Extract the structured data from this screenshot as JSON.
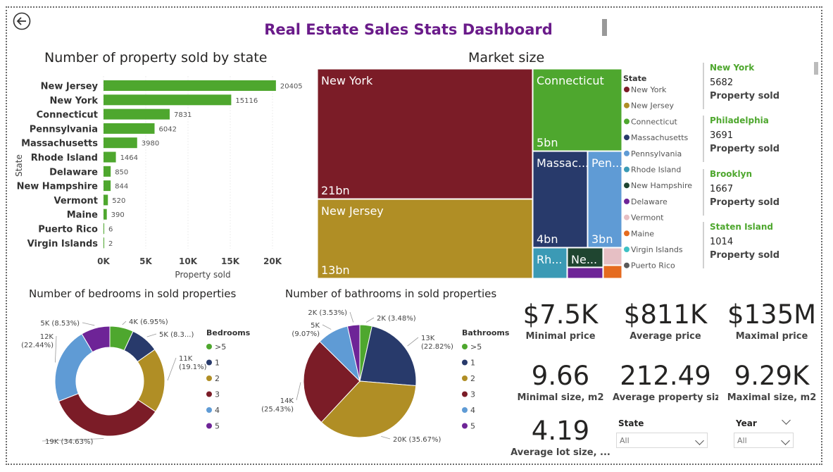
{
  "title": "Real Estate Sales Stats Dashboard",
  "colors": {
    "title": "#6a1b8a",
    "bar": "#4ea72e",
    "card_city": "#4ea72e",
    "palette": [
      "#7b1c27",
      "#b08e25",
      "#4ea72e",
      "#283a6b",
      "#5f9bd5",
      "#3b9ab5",
      "#1f4530",
      "#6e2497",
      "#e6bfc4",
      "#e56b1f",
      "#3ec1c5",
      "#5a5a5a"
    ]
  },
  "chart_data": [
    {
      "type": "bar",
      "orientation": "horizontal",
      "title": "Number of property sold by state",
      "xlabel": "Property sold",
      "ylabel": "State",
      "xlim": [
        0,
        20000
      ],
      "xticks": [
        "0K",
        "5K",
        "10K",
        "15K",
        "20K"
      ],
      "categories": [
        "New Jersey",
        "New York",
        "Connecticut",
        "Pennsylvania",
        "Massachusetts",
        "Rhode Island",
        "Delaware",
        "New Hampshire",
        "Vermont",
        "Maine",
        "Puerto Rico",
        "Virgin Islands"
      ],
      "values": [
        20405,
        15116,
        7831,
        6042,
        3980,
        1464,
        850,
        844,
        520,
        390,
        6,
        2
      ],
      "data_labels": [
        "20405",
        "15116",
        "7831",
        "6042",
        "3980",
        "1464",
        "850",
        "844",
        "520",
        "390",
        "6",
        "2"
      ]
    },
    {
      "type": "treemap",
      "title": "Market size",
      "legend_title": "State",
      "items": [
        {
          "name": "New York",
          "label": "New York",
          "value_label": "21bn",
          "value": 21
        },
        {
          "name": "New Jersey",
          "label": "New Jersey",
          "value_label": "13bn",
          "value": 13
        },
        {
          "name": "Connecticut",
          "label": "Connecticut",
          "value_label": "5bn",
          "value": 5
        },
        {
          "name": "Massachusetts",
          "label": "Massac...",
          "value_label": "4bn",
          "value": 4
        },
        {
          "name": "Pennsylvania",
          "label": "Pen...",
          "value_label": "3bn",
          "value": 3
        },
        {
          "name": "Rhode Island",
          "label": "Rh...",
          "value_label": "",
          "value": 1
        },
        {
          "name": "New Hampshire",
          "label": "Ne...",
          "value_label": "",
          "value": 1
        },
        {
          "name": "Delaware",
          "label": "",
          "value_label": "",
          "value": 0.4
        },
        {
          "name": "Vermont",
          "label": "",
          "value_label": "",
          "value": 0.4
        },
        {
          "name": "Maine",
          "label": "",
          "value_label": "",
          "value": 0.4
        },
        {
          "name": "Virgin Islands",
          "label": "",
          "value_label": "",
          "value": 0
        },
        {
          "name": "Puerto Rico",
          "label": "",
          "value_label": "",
          "value": 0
        }
      ]
    },
    {
      "type": "pie",
      "variant": "donut",
      "title": "Number of bedrooms in sold properties",
      "legend_title": "Bedrooms",
      "legend": [
        ">5",
        "1",
        "2",
        "3",
        "4",
        "5"
      ],
      "slices": [
        {
          "name": ">5",
          "value": 6.95,
          "label": "4K (6.95%)"
        },
        {
          "name": "1",
          "value": 8.3,
          "label": "5K (8.3...)"
        },
        {
          "name": "2",
          "value": 19.1,
          "label": "11K (19.1%)"
        },
        {
          "name": "3",
          "value": 34.63,
          "label": "19K (34.63%)"
        },
        {
          "name": "4",
          "value": 22.44,
          "label": "12K (22.44%)"
        },
        {
          "name": "5",
          "value": 8.53,
          "label": "5K (8.53%)"
        }
      ]
    },
    {
      "type": "pie",
      "title": "Number of bathrooms in sold properties",
      "legend_title": "Bathrooms",
      "legend": [
        ">5",
        "1",
        "2",
        "3",
        "4",
        "5"
      ],
      "slices": [
        {
          "name": ">5",
          "value": 3.48,
          "label": "2K (3.48%)"
        },
        {
          "name": "1",
          "value": 22.82,
          "label": "13K (22.82%)"
        },
        {
          "name": "2",
          "value": 35.67,
          "label": "20K (35.67%)"
        },
        {
          "name": "3",
          "value": 25.43,
          "label": "14K (25.43%)"
        },
        {
          "name": "4",
          "value": 9.07,
          "label": "5K (9.07%)"
        },
        {
          "name": "5",
          "value": 3.53,
          "label": "2K (3.53%)"
        }
      ]
    }
  ],
  "cards": [
    {
      "city": "New York",
      "value": "5682",
      "label": "Property sold"
    },
    {
      "city": "Philadelphia",
      "value": "3691",
      "label": "Property sold"
    },
    {
      "city": "Brooklyn",
      "value": "1667",
      "label": "Property sold"
    },
    {
      "city": "Staten Island",
      "value": "1014",
      "label": "Property sold"
    }
  ],
  "kpis": [
    {
      "value": "$7.5K",
      "label": "Minimal price"
    },
    {
      "value": "$811K",
      "label": "Average price"
    },
    {
      "value": "$135M",
      "label": "Maximal price"
    },
    {
      "value": "9.66",
      "label": "Minimal size, m2"
    },
    {
      "value": "212.49",
      "label": "Average property siz..."
    },
    {
      "value": "9.29K",
      "label": "Maximal size, m2"
    },
    {
      "value": "4.19",
      "label": "Average lot size, ..."
    }
  ],
  "slicers": [
    {
      "label": "State",
      "value": "All"
    },
    {
      "label": "Year",
      "value": "All"
    }
  ]
}
